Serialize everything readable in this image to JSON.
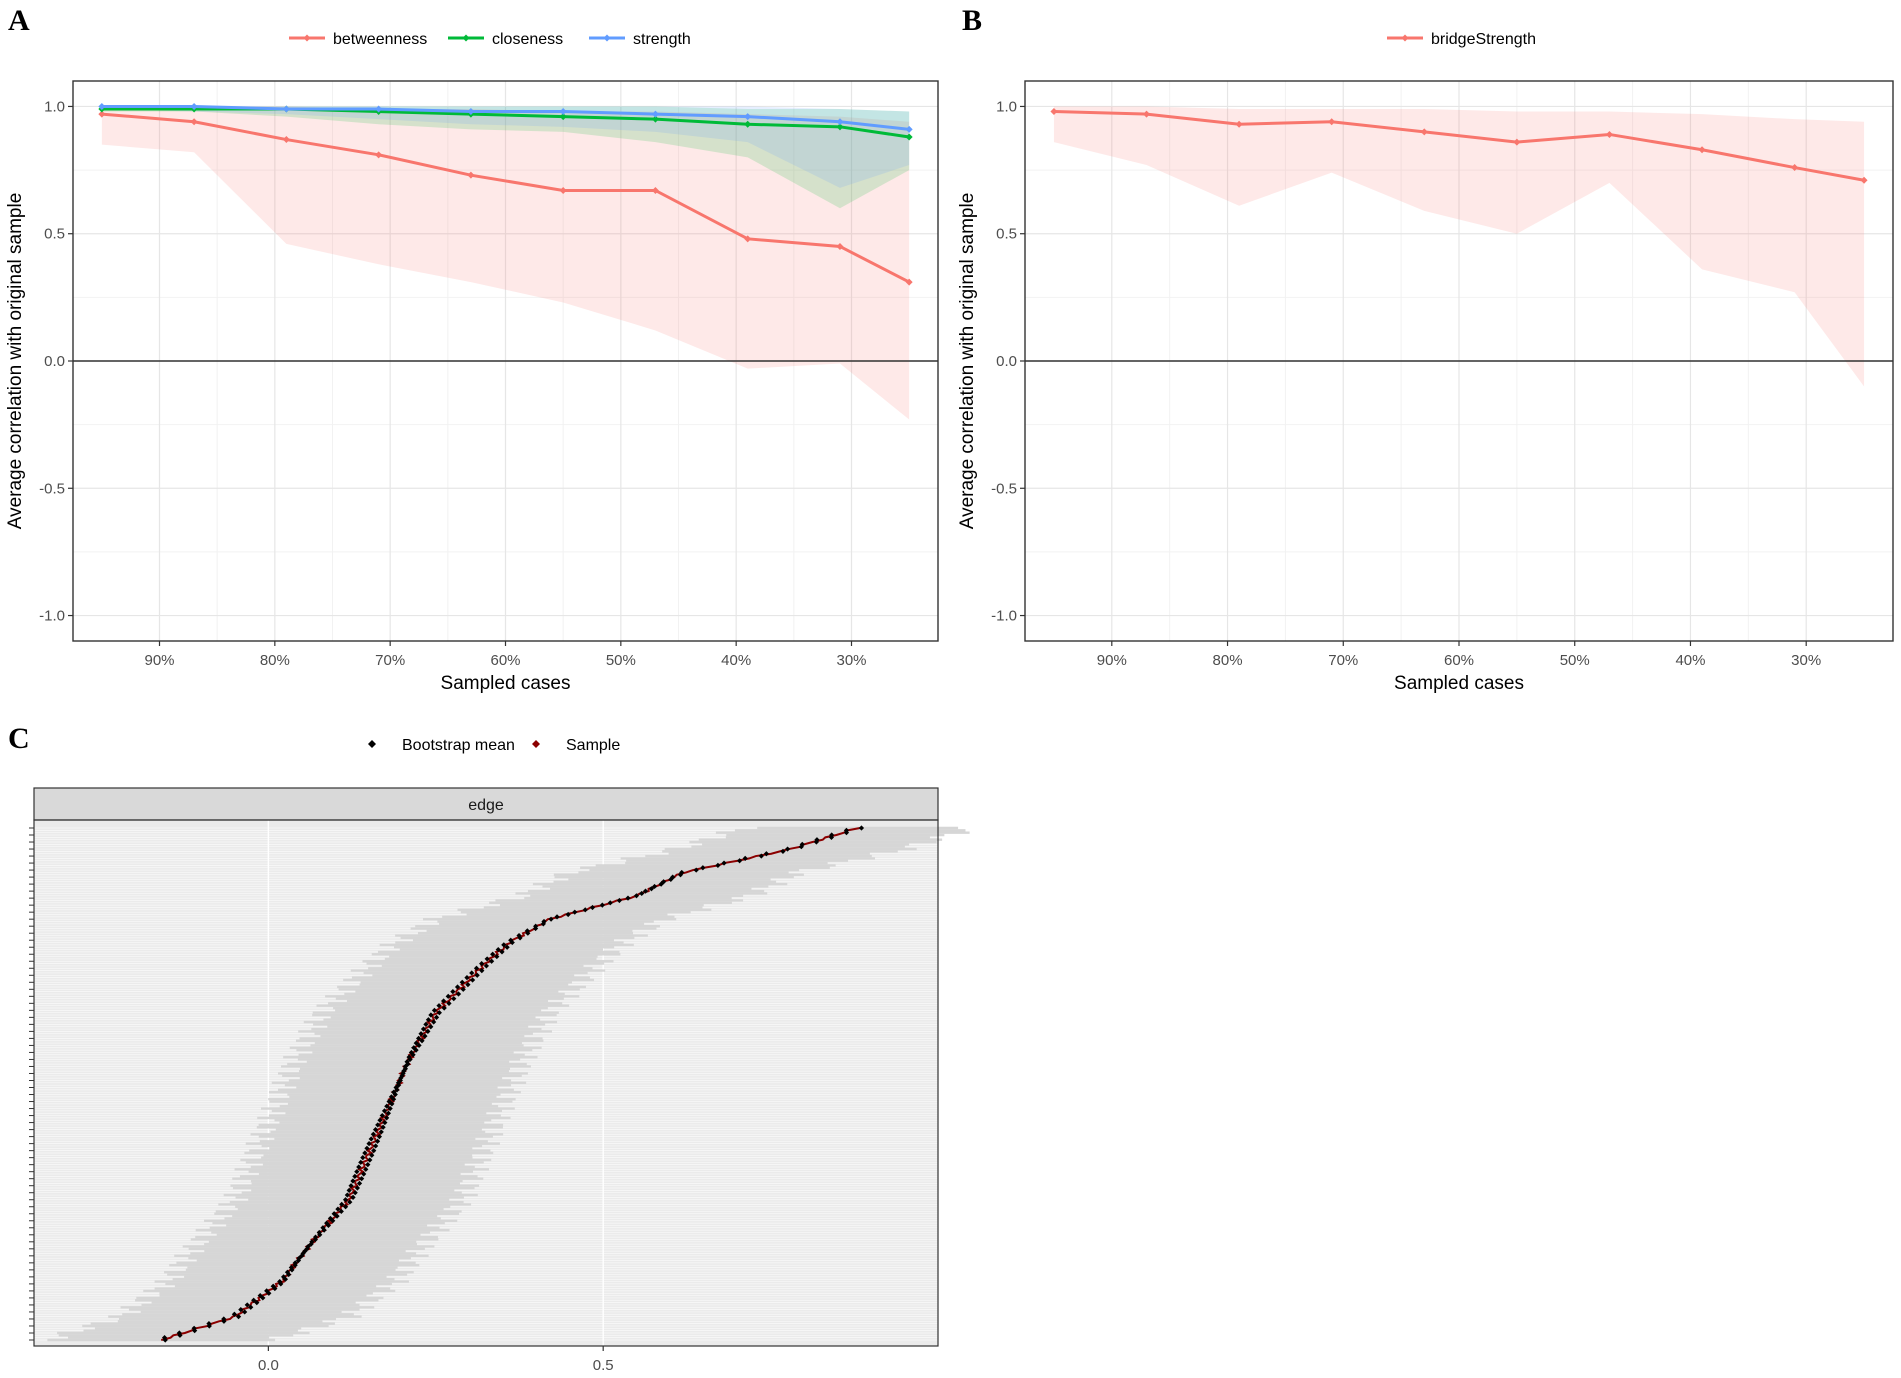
{
  "chart_data": [
    {
      "panel": "A",
      "type": "line",
      "xlabel": "Sampled cases",
      "ylabel": "Average correlation with original sample",
      "xlim": [
        0.975,
        0.225
      ],
      "ylim": [
        -1.1,
        1.1
      ],
      "x_ticks": [
        0.9,
        0.8,
        0.7,
        0.6,
        0.5,
        0.4,
        0.3
      ],
      "x_tick_labels": [
        "90%",
        "80%",
        "70%",
        "60%",
        "50%",
        "40%",
        "30%"
      ],
      "y_ticks": [
        -1.0,
        -0.5,
        0.0,
        0.5,
        1.0
      ],
      "y_tick_labels": [
        "-1.0",
        "-0.5",
        "0.0",
        "0.5",
        "1.0"
      ],
      "legend_position": "top",
      "x": [
        0.95,
        0.87,
        0.79,
        0.71,
        0.63,
        0.55,
        0.47,
        0.39,
        0.31,
        0.25
      ],
      "series": [
        {
          "name": "betweenness",
          "color": "#f8766d",
          "values": [
            0.97,
            0.94,
            0.87,
            0.81,
            0.73,
            0.67,
            0.67,
            0.48,
            0.45,
            0.31
          ],
          "lower": [
            0.85,
            0.82,
            0.46,
            0.38,
            0.31,
            0.23,
            0.12,
            -0.03,
            -0.01,
            -0.23
          ],
          "upper": [
            1.0,
            1.0,
            1.0,
            0.99,
            0.99,
            0.98,
            0.98,
            0.97,
            0.96,
            0.94
          ]
        },
        {
          "name": "closeness",
          "color": "#00ba38",
          "values": [
            0.99,
            0.99,
            0.99,
            0.98,
            0.97,
            0.96,
            0.95,
            0.93,
            0.92,
            0.88
          ],
          "lower": [
            0.98,
            0.98,
            0.96,
            0.93,
            0.91,
            0.9,
            0.86,
            0.8,
            0.6,
            0.75
          ],
          "upper": [
            1.0,
            1.0,
            1.0,
            1.0,
            1.0,
            1.0,
            1.0,
            0.99,
            0.99,
            0.98
          ]
        },
        {
          "name": "strength",
          "color": "#619cff",
          "values": [
            1.0,
            1.0,
            0.99,
            0.99,
            0.98,
            0.98,
            0.97,
            0.96,
            0.94,
            0.91
          ],
          "lower": [
            0.99,
            0.98,
            0.97,
            0.95,
            0.93,
            0.92,
            0.9,
            0.86,
            0.68,
            0.77
          ],
          "upper": [
            1.0,
            1.0,
            1.0,
            1.0,
            1.0,
            1.0,
            1.0,
            1.0,
            0.99,
            0.98
          ]
        }
      ]
    },
    {
      "panel": "B",
      "type": "line",
      "xlabel": "Sampled cases",
      "ylabel": "Average correlation with original sample",
      "xlim": [
        0.975,
        0.225
      ],
      "ylim": [
        -1.1,
        1.1
      ],
      "x_ticks": [
        0.9,
        0.8,
        0.7,
        0.6,
        0.5,
        0.4,
        0.3
      ],
      "x_tick_labels": [
        "90%",
        "80%",
        "70%",
        "60%",
        "50%",
        "40%",
        "30%"
      ],
      "y_ticks": [
        -1.0,
        -0.5,
        0.0,
        0.5,
        1.0
      ],
      "y_tick_labels": [
        "-1.0",
        "-0.5",
        "0.0",
        "0.5",
        "1.0"
      ],
      "legend_position": "top",
      "x": [
        0.95,
        0.87,
        0.79,
        0.71,
        0.63,
        0.55,
        0.47,
        0.39,
        0.31,
        0.25
      ],
      "series": [
        {
          "name": "bridgeStrength",
          "color": "#f8766d",
          "values": [
            0.98,
            0.97,
            0.93,
            0.94,
            0.9,
            0.86,
            0.89,
            0.83,
            0.76,
            0.71
          ],
          "lower": [
            0.86,
            0.77,
            0.61,
            0.74,
            0.59,
            0.5,
            0.7,
            0.36,
            0.27,
            -0.1
          ],
          "upper": [
            1.0,
            1.0,
            0.99,
            0.99,
            0.99,
            0.98,
            0.98,
            0.97,
            0.95,
            0.94
          ]
        }
      ]
    },
    {
      "panel": "C",
      "type": "scatter",
      "facet_label": "edge",
      "legend_position": "top",
      "legend": [
        {
          "name": "Bootstrap mean",
          "color": "#000000"
        },
        {
          "name": "Sample",
          "color": "#8b0000"
        }
      ],
      "ci_color": "#d6d6d6",
      "xlim": [
        -0.35,
        1.0
      ],
      "x_ticks": [
        0.0,
        0.5
      ],
      "x_tick_labels": [
        "0.0",
        "0.5"
      ],
      "n_edges": 220,
      "bootstrap_ci_halfwidth": 0.17,
      "sorted_edge_values": [
        {
          "rank": 0,
          "value": -0.16
        },
        {
          "rank": 10,
          "value": -0.05
        },
        {
          "rank": 25,
          "value": 0.02
        },
        {
          "rank": 40,
          "value": 0.06
        },
        {
          "rank": 60,
          "value": 0.12
        },
        {
          "rank": 80,
          "value": 0.15
        },
        {
          "rank": 100,
          "value": 0.18
        },
        {
          "rank": 120,
          "value": 0.21
        },
        {
          "rank": 140,
          "value": 0.25
        },
        {
          "rank": 160,
          "value": 0.32
        },
        {
          "rank": 170,
          "value": 0.36
        },
        {
          "rank": 180,
          "value": 0.42
        },
        {
          "rank": 190,
          "value": 0.55
        },
        {
          "rank": 200,
          "value": 0.62
        },
        {
          "rank": 210,
          "value": 0.78
        },
        {
          "rank": 219,
          "value": 0.88
        }
      ]
    }
  ]
}
